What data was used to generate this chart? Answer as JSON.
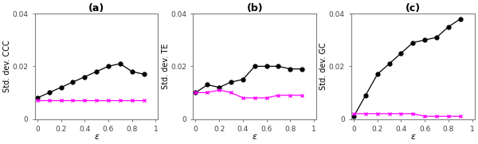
{
  "epsilon": [
    0.0,
    0.1,
    0.2,
    0.3,
    0.4,
    0.5,
    0.6,
    0.7,
    0.8,
    0.9
  ],
  "panels": [
    {
      "title": "(a)",
      "ylabel": "Std. dev. CCC",
      "black_y2x": [
        0.008,
        0.01,
        0.012,
        0.014,
        0.016,
        0.018,
        0.02,
        0.021,
        0.018,
        0.017
      ],
      "magenta_x2y": [
        0.007,
        0.007,
        0.007,
        0.007,
        0.007,
        0.007,
        0.007,
        0.007,
        0.007,
        0.007
      ],
      "ylim": [
        0,
        0.04
      ]
    },
    {
      "title": "(b)",
      "ylabel": "Std. dev. TE",
      "black_y2x": [
        0.01,
        0.013,
        0.012,
        0.014,
        0.015,
        0.02,
        0.02,
        0.02,
        0.019,
        0.019
      ],
      "magenta_x2y": [
        0.01,
        0.01,
        0.011,
        0.01,
        0.008,
        0.008,
        0.008,
        0.009,
        0.009,
        0.009
      ],
      "ylim": [
        0,
        0.04
      ]
    },
    {
      "title": "(c)",
      "ylabel": "Std. dev. GC",
      "black_y2x": [
        0.001,
        0.009,
        0.017,
        0.021,
        0.025,
        0.029,
        0.03,
        0.031,
        0.035,
        0.038
      ],
      "magenta_x2y": [
        0.002,
        0.002,
        0.002,
        0.002,
        0.002,
        0.002,
        0.001,
        0.001,
        0.001,
        0.001
      ],
      "ylim": [
        0,
        0.04
      ]
    }
  ],
  "xlabel": "ε",
  "black_color": "#000000",
  "magenta_color": "#ff00ff",
  "background_color": "#ffffff",
  "axes_edge_color": "#808080",
  "title_fontsize": 9,
  "label_fontsize": 7,
  "tick_fontsize": 6.5,
  "linewidth": 0.9,
  "markersize": 3.5
}
